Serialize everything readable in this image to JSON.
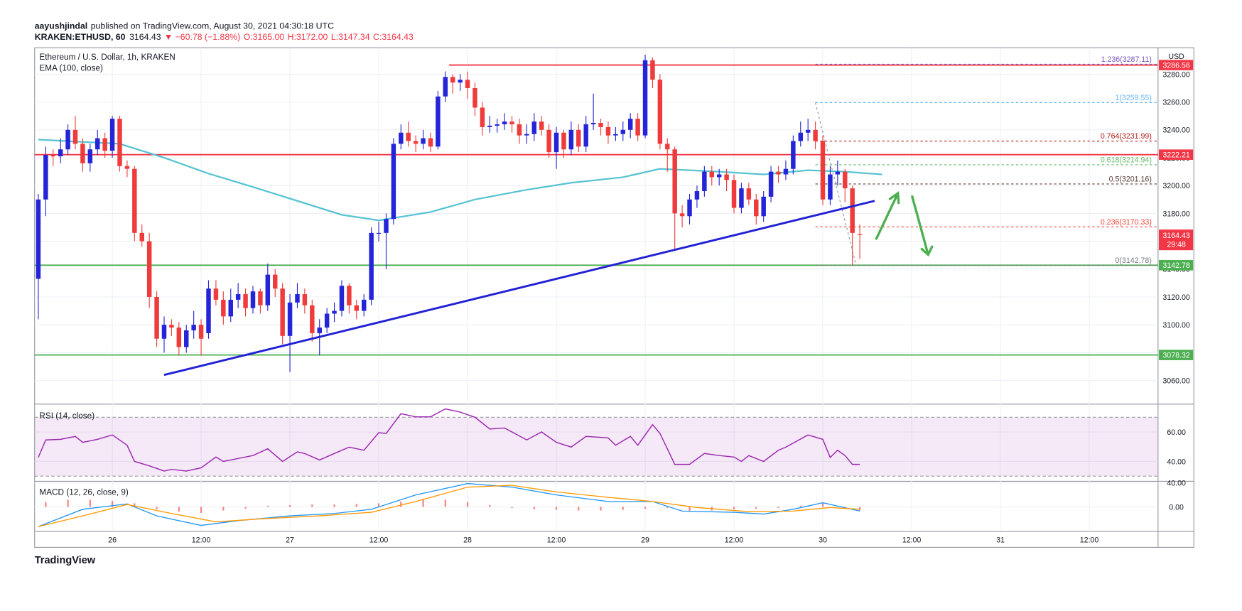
{
  "header": {
    "author": "aayushjindal",
    "published": "published on TradingView.com, August 30, 2021 04:30:18 UTC",
    "symbol": "KRAKEN:ETHUSD, 60",
    "last": "3164.43",
    "change": "▼ −60.78 (−1.88%)",
    "ohlc": [
      "O:3165.00",
      "H:3172.00",
      "L:3147.34",
      "C:3164.43"
    ]
  },
  "footer": {
    "logo": "TradingView"
  },
  "chart_data": {
    "type": "candlestick",
    "title": "Ethereum / U.S. Dollar, 1h, KRAKEN",
    "open": [
      3133,
      3190,
      3222,
      3221,
      3226,
      3240,
      3230,
      3216,
      3226,
      3234,
      3225,
      3248,
      3214,
      3212,
      3166,
      3160,
      3120,
      3090,
      3100,
      3098,
      3084,
      3096,
      3100,
      3094,
      3126,
      3118,
      3106,
      3118,
      3122,
      3112,
      3124,
      3114,
      3136,
      3126,
      3092,
      3116,
      3122,
      3114,
      3094,
      3098,
      3108,
      3110,
      3128,
      3114,
      3110,
      3118,
      3166,
      3166,
      3176,
      3230,
      3238,
      3232,
      3230,
      3234,
      3228,
      3264,
      3278,
      3274,
      3276,
      3270,
      3256,
      3242,
      3243,
      3244,
      3246,
      3244,
      3236,
      3237,
      3246,
      3240,
      3224,
      3238,
      3226,
      3240,
      3228,
      3244,
      3245,
      3242,
      3236,
      3237,
      3240,
      3248,
      3236,
      3290,
      3276,
      3230,
      3226,
      3180,
      3178,
      3190,
      3196,
      3210,
      3206,
      3208,
      3204,
      3184,
      3198,
      3190,
      3178,
      3192,
      3210,
      3208,
      3212,
      3232,
      3238,
      3240,
      3232,
      3190,
      3208,
      3210,
      3198,
      3165
    ],
    "high": [
      3194,
      3228,
      3226,
      3234,
      3244,
      3250,
      3234,
      3230,
      3240,
      3238,
      3250,
      3250,
      3218,
      3214,
      3172,
      3166,
      3124,
      3106,
      3104,
      3102,
      3100,
      3110,
      3104,
      3132,
      3132,
      3124,
      3126,
      3130,
      3126,
      3128,
      3126,
      3144,
      3140,
      3130,
      3122,
      3130,
      3126,
      3118,
      3104,
      3112,
      3116,
      3132,
      3130,
      3118,
      3122,
      3170,
      3174,
      3180,
      3234,
      3244,
      3246,
      3236,
      3240,
      3238,
      3268,
      3282,
      3280,
      3280,
      3282,
      3274,
      3260,
      3250,
      3248,
      3252,
      3250,
      3248,
      3244,
      3252,
      3250,
      3244,
      3242,
      3240,
      3246,
      3244,
      3250,
      3266,
      3248,
      3246,
      3242,
      3246,
      3252,
      3252,
      3294,
      3292,
      3280,
      3234,
      3228,
      3186,
      3194,
      3200,
      3214,
      3214,
      3212,
      3212,
      3208,
      3202,
      3202,
      3194,
      3196,
      3214,
      3214,
      3218,
      3236,
      3246,
      3248,
      3246,
      3236,
      3214,
      3218,
      3212,
      3200,
      3172
    ],
    "low": [
      3104,
      3178,
      3214,
      3216,
      3222,
      3226,
      3210,
      3210,
      3222,
      3220,
      3220,
      3210,
      3206,
      3160,
      3156,
      3112,
      3084,
      3080,
      3092,
      3078,
      3080,
      3090,
      3078,
      3090,
      3114,
      3100,
      3102,
      3112,
      3106,
      3108,
      3108,
      3110,
      3120,
      3086,
      3066,
      3112,
      3108,
      3088,
      3078,
      3094,
      3102,
      3106,
      3108,
      3104,
      3106,
      3114,
      3160,
      3140,
      3172,
      3226,
      3228,
      3224,
      3226,
      3224,
      3226,
      3260,
      3266,
      3268,
      3262,
      3250,
      3236,
      3238,
      3238,
      3240,
      3238,
      3230,
      3230,
      3232,
      3236,
      3220,
      3212,
      3220,
      3222,
      3224,
      3224,
      3240,
      3236,
      3230,
      3232,
      3232,
      3234,
      3232,
      3234,
      3270,
      3226,
      3210,
      3154,
      3170,
      3172,
      3184,
      3192,
      3200,
      3200,
      3196,
      3180,
      3180,
      3186,
      3172,
      3174,
      3188,
      3202,
      3204,
      3208,
      3228,
      3232,
      3226,
      3186,
      3186,
      3200,
      3188,
      3142.78,
      3147.34
    ],
    "close": [
      3190,
      3222,
      3221,
      3226,
      3240,
      3230,
      3216,
      3226,
      3234,
      3225,
      3248,
      3214,
      3212,
      3166,
      3160,
      3120,
      3090,
      3100,
      3098,
      3084,
      3096,
      3100,
      3090,
      3126,
      3118,
      3106,
      3118,
      3122,
      3112,
      3124,
      3114,
      3136,
      3126,
      3092,
      3116,
      3122,
      3114,
      3094,
      3098,
      3108,
      3110,
      3128,
      3114,
      3110,
      3118,
      3166,
      3166,
      3176,
      3230,
      3238,
      3232,
      3230,
      3234,
      3228,
      3264,
      3278,
      3274,
      3276,
      3270,
      3256,
      3242,
      3243,
      3244,
      3246,
      3244,
      3236,
      3237,
      3246,
      3240,
      3224,
      3238,
      3226,
      3240,
      3228,
      3244,
      3245,
      3242,
      3236,
      3237,
      3240,
      3248,
      3236,
      3290,
      3276,
      3230,
      3226,
      3180,
      3178,
      3190,
      3196,
      3210,
      3206,
      3208,
      3204,
      3184,
      3198,
      3190,
      3178,
      3192,
      3210,
      3208,
      3212,
      3232,
      3238,
      3240,
      3232,
      3190,
      3208,
      3210,
      3198,
      3166,
      3164.43
    ],
    "up_color": "#2424d8",
    "down_color": "#ef3b3b",
    "ylim": [
      3043,
      3299
    ],
    "yticks": [
      {
        "value": 3060,
        "label": "3060.00"
      },
      {
        "value": 3080,
        "label": "3080.00"
      },
      {
        "value": 3100,
        "label": "3100.00"
      },
      {
        "value": 3120,
        "label": "3120.00"
      },
      {
        "value": 3140,
        "label": "3140.00"
      },
      {
        "value": 3160,
        "label": "3160.00"
      },
      {
        "value": 3180,
        "label": "3180.00"
      },
      {
        "value": 3200,
        "label": "3200.00"
      },
      {
        "value": 3220,
        "label": "3220.00"
      },
      {
        "value": 3240,
        "label": "3240.00"
      },
      {
        "value": 3260,
        "label": "3260.00"
      },
      {
        "value": 3280,
        "label": "3280.00"
      }
    ],
    "xlim": [
      -0.5,
      151.3
    ],
    "xticks": [
      {
        "value": 10,
        "label": "26"
      },
      {
        "value": 22,
        "label": "12:00"
      },
      {
        "value": 34,
        "label": "27"
      },
      {
        "value": 46,
        "label": "12:00"
      },
      {
        "value": 58,
        "label": "28"
      },
      {
        "value": 70,
        "label": "12:00"
      },
      {
        "value": 82,
        "label": "29"
      },
      {
        "value": 94,
        "label": "12:00"
      },
      {
        "value": 106,
        "label": "30"
      },
      {
        "value": 118,
        "label": "12:00"
      },
      {
        "value": 130,
        "label": "31"
      },
      {
        "value": 142,
        "label": "12:00"
      }
    ],
    "grid": true,
    "price_unit": "USD",
    "ema": {
      "name": "EMA (100, close)",
      "color": "#56c3d2",
      "x": [
        0,
        11,
        17,
        23,
        29,
        35,
        41,
        46,
        53,
        59,
        66,
        72,
        79,
        84,
        92,
        98,
        104,
        109,
        114
      ],
      "values": [
        3233,
        3230,
        3220,
        3208.6,
        3199,
        3189,
        3179,
        3175,
        3181,
        3190,
        3197,
        3202,
        3206,
        3212,
        3210,
        3208,
        3211,
        3210,
        3208
      ]
    },
    "trendline": {
      "color": "#2121d6",
      "x": [
        17,
        113
      ],
      "values": [
        3064,
        3189
      ]
    },
    "levels": [
      {
        "value": 3286.56,
        "label": "3286.56",
        "color": "#f23645",
        "from": 55.5
      },
      {
        "value": 3222.21,
        "label": "3222.21",
        "color": "#f23645"
      },
      {
        "value": 3142.78,
        "label": "3142.78",
        "color": "#4caf50"
      },
      {
        "value": 3078.32,
        "label": "3078.32",
        "color": "#4caf50"
      }
    ],
    "price_label": {
      "value": 3164.43,
      "label": "3164.43",
      "countdown": "29:48",
      "color": "#f23645"
    },
    "fib": {
      "from": 105,
      "anchor_x": [
        105,
        110.5
      ],
      "levels": [
        {
          "label": "1.236(3287.11)",
          "value": 3287.11,
          "color": "#7e57c2"
        },
        {
          "label": "1(3259.55)",
          "value": 3259.55,
          "color": "#64b5f6"
        },
        {
          "label": "0.764(3231.99)",
          "value": 3231.99,
          "color": "#b71c1c"
        },
        {
          "label": "0.618(3214.94)",
          "value": 3214.94,
          "color": "#66bb6a"
        },
        {
          "label": "0.5(3201.16)",
          "value": 3201.16,
          "color": "#5d4037"
        },
        {
          "label": "0.236(3170.33)",
          "value": 3170.33,
          "color": "#f44336"
        },
        {
          "label": "0(3142.78)",
          "value": 3142.78,
          "color": "#787b86"
        }
      ]
    },
    "rsi": {
      "title": "RSI (14, close)",
      "color": "#9c27b0",
      "band": [
        30,
        70
      ],
      "ylim": [
        26.5,
        78.9
      ],
      "yticks": [
        {
          "value": 40,
          "label": "40.00"
        },
        {
          "value": 60,
          "label": "60.00"
        }
      ],
      "x": [
        0,
        1,
        3,
        5,
        6,
        8,
        10,
        12,
        13,
        15,
        17,
        18,
        20,
        22,
        24,
        25,
        27,
        29,
        31,
        33,
        35,
        36,
        38,
        40,
        42,
        44,
        46,
        47,
        49,
        51,
        53,
        55,
        57,
        59,
        61,
        63,
        64,
        66,
        68,
        70,
        72,
        74,
        77,
        78,
        80,
        81,
        83,
        84,
        86,
        88,
        90,
        92,
        94,
        95,
        96,
        98,
        100,
        101,
        104,
        106,
        107,
        108,
        109,
        110,
        111
      ],
      "values": [
        42.7,
        54.6,
        55,
        57,
        53,
        55,
        58,
        51,
        40,
        37,
        33.5,
        34.6,
        33.5,
        35.7,
        43,
        40,
        42,
        44,
        48.6,
        40,
        46.5,
        45.4,
        41,
        45.4,
        49.7,
        47.6,
        59.5,
        59,
        72.4,
        70.3,
        70.3,
        75.7,
        73.5,
        70,
        62,
        62.7,
        60,
        54.6,
        60,
        53,
        49.7,
        57,
        56,
        51,
        57,
        51,
        65,
        59,
        38,
        38,
        45.4,
        44,
        43,
        40,
        44,
        40,
        47.6,
        49.7,
        58,
        55,
        42.7,
        47.6,
        44,
        38,
        38
      ]
    },
    "macd": {
      "title": "MACD (12, 26, close, 9)",
      "ylim": [
        -41,
        42.7
      ],
      "yticks": [
        {
          "value": 0,
          "label": "0.00"
        },
        {
          "value": 40,
          "label": "40.00"
        }
      ],
      "macd_line": {
        "color": "#2196f3",
        "x": [
          0,
          6,
          12,
          16,
          22,
          27,
          34,
          40,
          45,
          51,
          58,
          64,
          70,
          77,
          83,
          87,
          94,
          98,
          102,
          106,
          111
        ],
        "values": [
          -33,
          -4,
          5,
          -15,
          -31,
          -23,
          -15,
          -11,
          -4,
          20,
          39,
          33,
          20,
          9,
          9,
          -7,
          -9,
          -12,
          -4,
          7,
          -7
        ]
      },
      "signal": {
        "color": "#ff9800",
        "x": [
          0,
          6,
          12,
          18,
          24,
          30,
          38,
          45,
          51,
          58,
          64,
          70,
          77,
          83,
          89,
          96,
          102,
          107,
          111
        ],
        "values": [
          -33,
          -15,
          4,
          -11,
          -25,
          -20,
          -15,
          -9,
          9,
          33,
          36,
          25,
          16,
          9,
          -1,
          -8,
          -7,
          -1,
          -4
        ]
      },
      "histogram": {
        "color": "#ef5350",
        "x": [
          1,
          4,
          7,
          10,
          13,
          16,
          19,
          22,
          25,
          28,
          31,
          34,
          37,
          40,
          43,
          46,
          49,
          52,
          55,
          58,
          61,
          64,
          67,
          70,
          73,
          76,
          79,
          82,
          85,
          88,
          91,
          94,
          97,
          100,
          103,
          106,
          109,
          111
        ],
        "values": [
          8,
          12,
          12,
          10,
          6,
          -4,
          -8,
          -10,
          -6,
          -3,
          2,
          3,
          4,
          4,
          5,
          6,
          9,
          12,
          12,
          8,
          3,
          -2,
          -4,
          -5,
          -6,
          -6,
          -5,
          -3,
          -2,
          -8,
          -6,
          -4,
          -3,
          -2,
          2,
          6,
          -3,
          -6
        ]
      }
    }
  }
}
